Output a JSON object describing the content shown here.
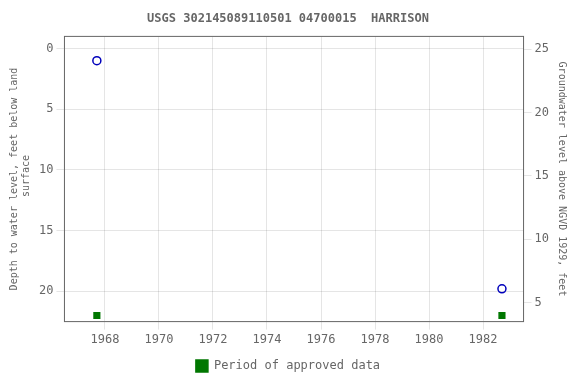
{
  "chart_data": {
    "type": "scatter",
    "title": "USGS 302145089110501 04700015  HARRISON",
    "ylabel": "Depth to water level, feet below land\n surface",
    "y2label": "Groundwater level above NGVD 1929, feet",
    "xlim": [
      1966.5,
      1983.5
    ],
    "xticks": [
      1968,
      1970,
      1972,
      1974,
      1976,
      1978,
      1980,
      1982
    ],
    "ylim": [
      22.5,
      -1.0
    ],
    "yticks": [
      0,
      5,
      10,
      15,
      20
    ],
    "y2lim": [
      3.5,
      26.0
    ],
    "y2ticks": [
      5,
      10,
      15,
      20,
      25
    ],
    "grid": true,
    "legend": "bottom",
    "series": [
      {
        "x": [
          1967.7,
          1982.7
        ],
        "values": [
          1.0,
          19.8
        ],
        "color": "#0000bb",
        "marker": "circle"
      },
      {
        "name": "Period of approved data",
        "x": [
          1967.7,
          1982.7
        ],
        "values": [
          22.0,
          22.0
        ],
        "color": "#007700",
        "marker": "square"
      }
    ]
  }
}
